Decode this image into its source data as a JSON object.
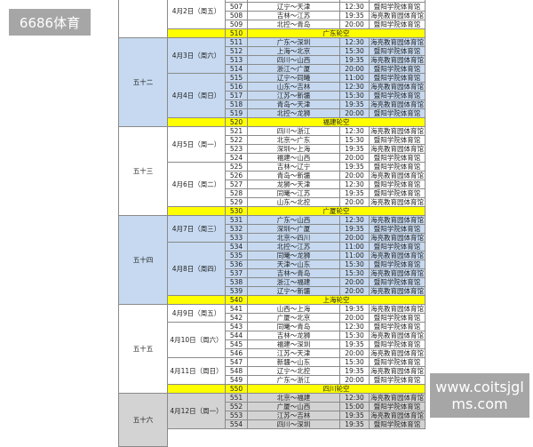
{
  "watermarks": {
    "top_left": "6686体育",
    "bottom_right": "www.coitsjglms.com"
  },
  "colors": {
    "blue_section": "#c6d9f0",
    "bye_row": "#ffff00",
    "gray_section": "#d3d3d3",
    "white_section": "#ffffff"
  },
  "rounds": [
    {
      "label": "",
      "color": "white",
      "dates": [
        {
          "date": "4月2日（周五）",
          "games": [
            {
              "no": "507",
              "match": "辽宁～天津",
              "time": "12:30",
              "venue": "暨阳学院体育馆"
            },
            {
              "no": "508",
              "match": "吉林～江苏",
              "time": "19:35",
              "venue": "海亮教育园体育馆"
            },
            {
              "no": "509",
              "match": "北控～青岛",
              "time": "20:00",
              "venue": "暨阳学院体育馆"
            }
          ]
        }
      ],
      "bye": {
        "no": "510",
        "text": "广东轮空"
      }
    },
    {
      "label": "五十二",
      "color": "blue",
      "dates": [
        {
          "date": "4月3日（周六）",
          "games": [
            {
              "no": "511",
              "match": "广东～深圳",
              "time": "12:30",
              "venue": "海亮教育园体育馆"
            },
            {
              "no": "512",
              "match": "上海～北京",
              "time": "15:30",
              "venue": "暨阳学院体育馆"
            },
            {
              "no": "513",
              "match": "四川～山西",
              "time": "19:35",
              "venue": "海亮教育园体育馆"
            },
            {
              "no": "514",
              "match": "浙江～广厦",
              "time": "20:00",
              "venue": "暨阳学院体育馆"
            }
          ]
        },
        {
          "date": "4月4日（周日）",
          "games": [
            {
              "no": "515",
              "match": "辽宁～同曦",
              "time": "11:00",
              "venue": "暨阳学院体育馆"
            },
            {
              "no": "516",
              "match": "山东～吉林",
              "time": "12:30",
              "venue": "海亮教育园体育馆"
            },
            {
              "no": "517",
              "match": "江苏～新疆",
              "time": "15:30",
              "venue": "暨阳学院体育馆"
            },
            {
              "no": "518",
              "match": "青岛～天津",
              "time": "19:35",
              "venue": "海亮教育园体育馆"
            },
            {
              "no": "519",
              "match": "北控～龙狮",
              "time": "20:00",
              "venue": "暨阳学院体育馆"
            }
          ]
        }
      ],
      "bye": {
        "no": "520",
        "text": "福建轮空"
      }
    },
    {
      "label": "五十三",
      "color": "white",
      "dates": [
        {
          "date": "4月5日（周一）",
          "games": [
            {
              "no": "521",
              "match": "四川～浙江",
              "time": "12:30",
              "venue": "海亮教育园体育馆"
            },
            {
              "no": "522",
              "match": "北京～广东",
              "time": "15:30",
              "venue": "暨阳学院体育馆"
            },
            {
              "no": "523",
              "match": "深圳～上海",
              "time": "19:35",
              "venue": "海亮教育园体育馆"
            },
            {
              "no": "524",
              "match": "福建～山西",
              "time": "20:00",
              "venue": "暨阳学院体育馆"
            }
          ]
        },
        {
          "date": "4月6日（周二）",
          "games": [
            {
              "no": "525",
              "match": "吉林～辽宁",
              "time": "19:35",
              "venue": "暨阳学院体育馆"
            },
            {
              "no": "526",
              "match": "青岛～新疆",
              "time": "20:00",
              "venue": "海亮教育园体育馆"
            },
            {
              "no": "527",
              "match": "龙狮～天津",
              "time": "12:30",
              "venue": "暨阳学院体育馆"
            },
            {
              "no": "528",
              "match": "同曦～江苏",
              "time": "19:35",
              "venue": "暨阳学院体育馆"
            },
            {
              "no": "529",
              "match": "山东～北控",
              "time": "20:00",
              "venue": "海亮教育园体育馆"
            }
          ]
        }
      ],
      "bye": {
        "no": "530",
        "text": "广厦轮空"
      }
    },
    {
      "label": "五十四",
      "color": "blue",
      "dates": [
        {
          "date": "4月7日（周三）",
          "games": [
            {
              "no": "531",
              "match": "广东～山西",
              "time": "12:30",
              "venue": "海亮教育园体育馆"
            },
            {
              "no": "532",
              "match": "深圳～广厦",
              "time": "19:35",
              "venue": "暨阳学院体育馆"
            },
            {
              "no": "533",
              "match": "北京～四川",
              "time": "20:00",
              "venue": "海亮教育园体育馆"
            }
          ]
        },
        {
          "date": "4月8日（周四）",
          "games": [
            {
              "no": "534",
              "match": "北控～江苏",
              "time": "11:00",
              "venue": "暨阳学院体育馆"
            },
            {
              "no": "535",
              "match": "同曦～龙狮",
              "time": "11:00",
              "venue": "海亮教育园体育馆"
            },
            {
              "no": "536",
              "match": "天津～山东",
              "time": "15:30",
              "venue": "暨阳学院体育馆"
            },
            {
              "no": "537",
              "match": "吉林～青岛",
              "time": "15:30",
              "venue": "海亮教育园体育馆"
            },
            {
              "no": "538",
              "match": "浙江～福建",
              "time": "20:00",
              "venue": "暨阳学院体育馆"
            },
            {
              "no": "539",
              "match": "辽宁～新疆",
              "time": "20:00",
              "venue": "海亮教育园体育馆"
            }
          ]
        }
      ],
      "bye": {
        "no": "540",
        "text": "上海轮空"
      }
    },
    {
      "label": "五十五",
      "color": "white",
      "dates": [
        {
          "date": "4月9日（周五）",
          "games": [
            {
              "no": "541",
              "match": "山西～上海",
              "time": "19:35",
              "venue": "海亮教育园体育馆"
            },
            {
              "no": "542",
              "match": "广厦～北京",
              "time": "20:00",
              "venue": "暨阳学院体育馆"
            }
          ]
        },
        {
          "date": "4月10日（周六）",
          "games": [
            {
              "no": "543",
              "match": "同曦～青岛",
              "time": "12:30",
              "venue": "暨阳学院体育馆"
            },
            {
              "no": "544",
              "match": "吉林～龙狮",
              "time": "15:30",
              "venue": "海亮教育园体育馆"
            },
            {
              "no": "545",
              "match": "福建～深圳",
              "time": "19:35",
              "venue": "暨阳学院体育馆"
            },
            {
              "no": "546",
              "match": "江苏～天津",
              "time": "20:00",
              "venue": "海亮教育园体育馆"
            }
          ]
        },
        {
          "date": "4月11日（周日）",
          "games": [
            {
              "no": "547",
              "match": "新疆～山东",
              "time": "15:30",
              "venue": "暨阳学院体育馆"
            },
            {
              "no": "548",
              "match": "辽宁～北控",
              "time": "19:35",
              "venue": "海亮教育园体育馆"
            },
            {
              "no": "549",
              "match": "广东～浙江",
              "time": "20:00",
              "venue": "暨阳学院体育馆"
            }
          ]
        }
      ],
      "bye": {
        "no": "550",
        "text": "四川轮空"
      }
    },
    {
      "label": "五十六",
      "color": "gray",
      "dates": [
        {
          "date": "4月12日（周一）",
          "games": [
            {
              "no": "551",
              "match": "北京～福建",
              "time": "12:30",
              "venue": "海亮教育园体育馆"
            },
            {
              "no": "552",
              "match": "广厦～山西",
              "time": "15:00",
              "venue": "暨阳学院体育馆"
            },
            {
              "no": "553",
              "match": "江苏～吉林",
              "time": "19:35",
              "venue": "海亮教育园体育馆"
            },
            {
              "no": "554",
              "match": "四川～深圳",
              "time": "19:35",
              "venue": "暨阳学院体育馆"
            }
          ]
        }
      ]
    }
  ]
}
